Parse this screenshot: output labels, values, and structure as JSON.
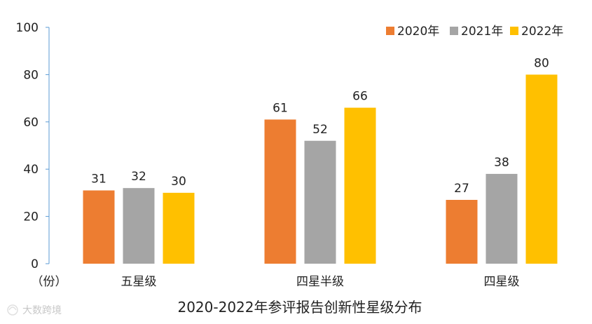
{
  "chart_data": {
    "type": "bar",
    "title": "2020-2022年参评报告创新性星级分布",
    "ylabel": "",
    "xlabel": "",
    "y_unit": "（份）",
    "ylim": [
      0,
      100
    ],
    "yticks": [
      "0",
      "20",
      "40",
      "60",
      "80",
      "100"
    ],
    "categories": [
      "五星级",
      "四星半级",
      "四星级"
    ],
    "series": [
      {
        "name": "2020年",
        "color": "#ED7D31",
        "values": [
          31,
          61,
          27
        ]
      },
      {
        "name": "2021年",
        "color": "#A5A5A5",
        "values": [
          32,
          52,
          38
        ]
      },
      {
        "name": "2022年",
        "color": "#FFC000",
        "values": [
          30,
          66,
          80
        ]
      }
    ],
    "grid": false,
    "legend_position": "top-right"
  },
  "watermark": {
    "text": "大数跨境"
  }
}
